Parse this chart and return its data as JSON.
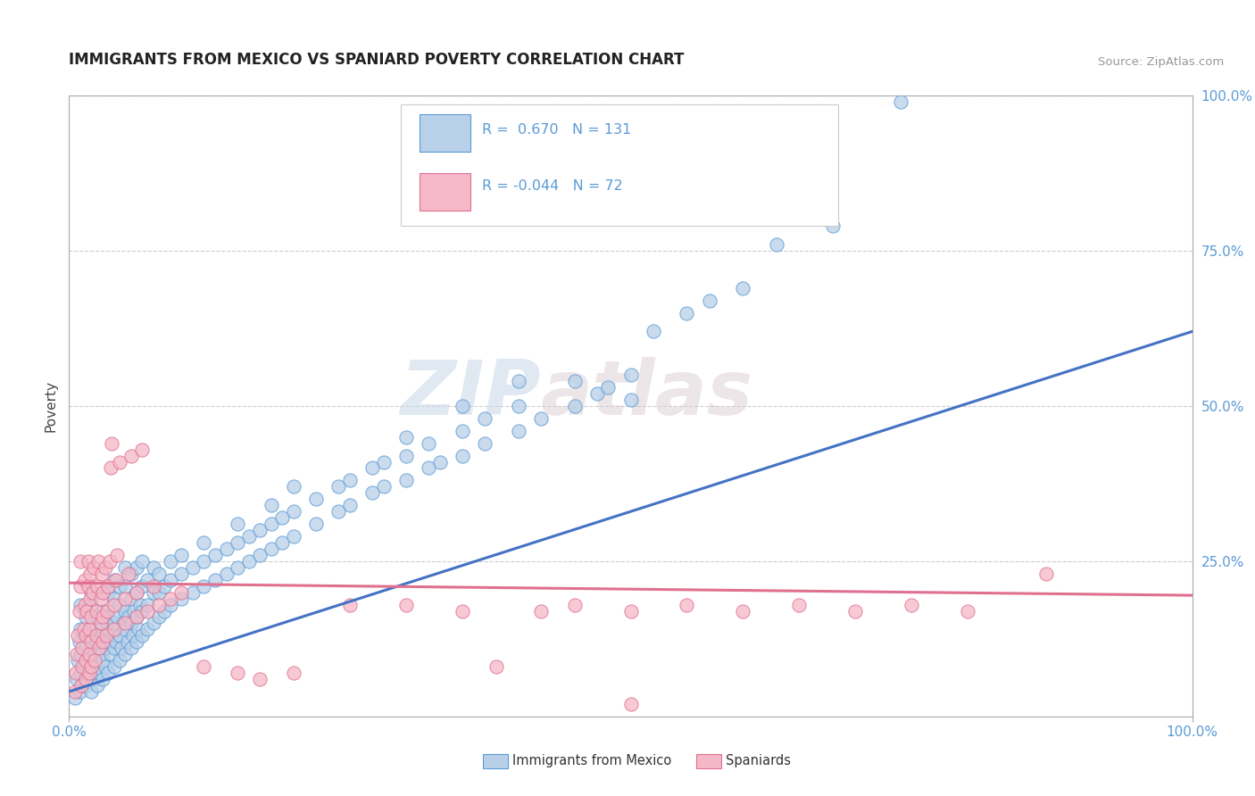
{
  "title": "IMMIGRANTS FROM MEXICO VS SPANIARD POVERTY CORRELATION CHART",
  "source": "Source: ZipAtlas.com",
  "ylabel": "Poverty",
  "xlim": [
    0.0,
    1.0
  ],
  "ylim": [
    0.0,
    1.0
  ],
  "xtick_labels": [
    "0.0%",
    "100.0%"
  ],
  "ytick_positions": [
    0.25,
    0.5,
    0.75,
    1.0
  ],
  "ytick_labels": [
    "25.0%",
    "50.0%",
    "75.0%",
    "100.0%"
  ],
  "legend_label1": "Immigrants from Mexico",
  "legend_label2": "Spaniards",
  "color_blue_fill": "#b8d0e8",
  "color_blue_edge": "#5b9bd5",
  "color_pink_fill": "#f4b8c8",
  "color_pink_edge": "#e07090",
  "color_blue_line": "#4472c4",
  "color_pink_line": "#e07090",
  "color_tick_label": "#5b9bd5",
  "title_color": "#222222",
  "axis_color": "#aaaaaa",
  "grid_color": "#cccccc",
  "background_color": "#ffffff",
  "watermark1": "ZIP",
  "watermark2": "atlas",
  "blue_line_x": [
    0.0,
    1.0
  ],
  "blue_line_y": [
    0.04,
    0.62
  ],
  "pink_line_x": [
    0.0,
    1.0
  ],
  "pink_line_y": [
    0.215,
    0.195
  ],
  "blue_scatter": [
    [
      0.005,
      0.03
    ],
    [
      0.007,
      0.06
    ],
    [
      0.008,
      0.09
    ],
    [
      0.009,
      0.12
    ],
    [
      0.01,
      0.04
    ],
    [
      0.01,
      0.07
    ],
    [
      0.01,
      0.1
    ],
    [
      0.01,
      0.14
    ],
    [
      0.01,
      0.18
    ],
    [
      0.012,
      0.05
    ],
    [
      0.013,
      0.08
    ],
    [
      0.015,
      0.05
    ],
    [
      0.015,
      0.11
    ],
    [
      0.015,
      0.16
    ],
    [
      0.017,
      0.06
    ],
    [
      0.018,
      0.09
    ],
    [
      0.018,
      0.13
    ],
    [
      0.02,
      0.04
    ],
    [
      0.02,
      0.07
    ],
    [
      0.02,
      0.1
    ],
    [
      0.02,
      0.14
    ],
    [
      0.02,
      0.18
    ],
    [
      0.02,
      0.2
    ],
    [
      0.022,
      0.06
    ],
    [
      0.023,
      0.09
    ],
    [
      0.024,
      0.12
    ],
    [
      0.025,
      0.05
    ],
    [
      0.025,
      0.08
    ],
    [
      0.025,
      0.12
    ],
    [
      0.025,
      0.16
    ],
    [
      0.027,
      0.07
    ],
    [
      0.028,
      0.1
    ],
    [
      0.028,
      0.14
    ],
    [
      0.03,
      0.06
    ],
    [
      0.03,
      0.09
    ],
    [
      0.03,
      0.13
    ],
    [
      0.03,
      0.17
    ],
    [
      0.03,
      0.2
    ],
    [
      0.032,
      0.08
    ],
    [
      0.033,
      0.11
    ],
    [
      0.034,
      0.15
    ],
    [
      0.035,
      0.07
    ],
    [
      0.035,
      0.12
    ],
    [
      0.035,
      0.16
    ],
    [
      0.035,
      0.2
    ],
    [
      0.037,
      0.1
    ],
    [
      0.038,
      0.13
    ],
    [
      0.04,
      0.08
    ],
    [
      0.04,
      0.11
    ],
    [
      0.04,
      0.15
    ],
    [
      0.04,
      0.19
    ],
    [
      0.04,
      0.22
    ],
    [
      0.042,
      0.12
    ],
    [
      0.043,
      0.16
    ],
    [
      0.045,
      0.09
    ],
    [
      0.045,
      0.13
    ],
    [
      0.045,
      0.18
    ],
    [
      0.045,
      0.21
    ],
    [
      0.047,
      0.11
    ],
    [
      0.048,
      0.15
    ],
    [
      0.05,
      0.1
    ],
    [
      0.05,
      0.14
    ],
    [
      0.05,
      0.17
    ],
    [
      0.05,
      0.21
    ],
    [
      0.05,
      0.24
    ],
    [
      0.052,
      0.12
    ],
    [
      0.053,
      0.16
    ],
    [
      0.055,
      0.11
    ],
    [
      0.055,
      0.15
    ],
    [
      0.055,
      0.19
    ],
    [
      0.055,
      0.23
    ],
    [
      0.057,
      0.13
    ],
    [
      0.058,
      0.17
    ],
    [
      0.06,
      0.12
    ],
    [
      0.06,
      0.16
    ],
    [
      0.06,
      0.2
    ],
    [
      0.06,
      0.24
    ],
    [
      0.062,
      0.14
    ],
    [
      0.063,
      0.18
    ],
    [
      0.065,
      0.13
    ],
    [
      0.065,
      0.17
    ],
    [
      0.065,
      0.21
    ],
    [
      0.065,
      0.25
    ],
    [
      0.07,
      0.14
    ],
    [
      0.07,
      0.18
    ],
    [
      0.07,
      0.22
    ],
    [
      0.075,
      0.15
    ],
    [
      0.075,
      0.2
    ],
    [
      0.075,
      0.24
    ],
    [
      0.08,
      0.16
    ],
    [
      0.08,
      0.2
    ],
    [
      0.08,
      0.23
    ],
    [
      0.085,
      0.17
    ],
    [
      0.085,
      0.21
    ],
    [
      0.09,
      0.18
    ],
    [
      0.09,
      0.22
    ],
    [
      0.09,
      0.25
    ],
    [
      0.1,
      0.19
    ],
    [
      0.1,
      0.23
    ],
    [
      0.1,
      0.26
    ],
    [
      0.11,
      0.2
    ],
    [
      0.11,
      0.24
    ],
    [
      0.12,
      0.21
    ],
    [
      0.12,
      0.25
    ],
    [
      0.12,
      0.28
    ],
    [
      0.13,
      0.22
    ],
    [
      0.13,
      0.26
    ],
    [
      0.14,
      0.23
    ],
    [
      0.14,
      0.27
    ],
    [
      0.15,
      0.24
    ],
    [
      0.15,
      0.28
    ],
    [
      0.15,
      0.31
    ],
    [
      0.16,
      0.25
    ],
    [
      0.16,
      0.29
    ],
    [
      0.17,
      0.26
    ],
    [
      0.17,
      0.3
    ],
    [
      0.18,
      0.27
    ],
    [
      0.18,
      0.31
    ],
    [
      0.18,
      0.34
    ],
    [
      0.19,
      0.28
    ],
    [
      0.19,
      0.32
    ],
    [
      0.2,
      0.29
    ],
    [
      0.2,
      0.33
    ],
    [
      0.2,
      0.37
    ],
    [
      0.22,
      0.31
    ],
    [
      0.22,
      0.35
    ],
    [
      0.24,
      0.33
    ],
    [
      0.24,
      0.37
    ],
    [
      0.25,
      0.34
    ],
    [
      0.25,
      0.38
    ],
    [
      0.27,
      0.36
    ],
    [
      0.27,
      0.4
    ],
    [
      0.28,
      0.37
    ],
    [
      0.28,
      0.41
    ],
    [
      0.3,
      0.38
    ],
    [
      0.3,
      0.42
    ],
    [
      0.3,
      0.45
    ],
    [
      0.32,
      0.4
    ],
    [
      0.32,
      0.44
    ],
    [
      0.33,
      0.41
    ],
    [
      0.35,
      0.42
    ],
    [
      0.35,
      0.46
    ],
    [
      0.35,
      0.5
    ],
    [
      0.37,
      0.44
    ],
    [
      0.37,
      0.48
    ],
    [
      0.4,
      0.46
    ],
    [
      0.4,
      0.5
    ],
    [
      0.4,
      0.54
    ],
    [
      0.42,
      0.48
    ],
    [
      0.45,
      0.5
    ],
    [
      0.45,
      0.54
    ],
    [
      0.47,
      0.52
    ],
    [
      0.48,
      0.53
    ],
    [
      0.5,
      0.51
    ],
    [
      0.5,
      0.55
    ],
    [
      0.52,
      0.62
    ],
    [
      0.55,
      0.65
    ],
    [
      0.57,
      0.67
    ],
    [
      0.6,
      0.69
    ],
    [
      0.63,
      0.76
    ],
    [
      0.68,
      0.79
    ],
    [
      0.74,
      0.99
    ]
  ],
  "pink_scatter": [
    [
      0.005,
      0.04
    ],
    [
      0.006,
      0.07
    ],
    [
      0.007,
      0.1
    ],
    [
      0.008,
      0.13
    ],
    [
      0.009,
      0.17
    ],
    [
      0.01,
      0.21
    ],
    [
      0.01,
      0.25
    ],
    [
      0.011,
      0.05
    ],
    [
      0.012,
      0.08
    ],
    [
      0.012,
      0.11
    ],
    [
      0.013,
      0.14
    ],
    [
      0.014,
      0.18
    ],
    [
      0.014,
      0.22
    ],
    [
      0.015,
      0.06
    ],
    [
      0.015,
      0.09
    ],
    [
      0.015,
      0.13
    ],
    [
      0.016,
      0.17
    ],
    [
      0.017,
      0.21
    ],
    [
      0.017,
      0.25
    ],
    [
      0.018,
      0.07
    ],
    [
      0.018,
      0.1
    ],
    [
      0.018,
      0.14
    ],
    [
      0.019,
      0.19
    ],
    [
      0.019,
      0.23
    ],
    [
      0.02,
      0.08
    ],
    [
      0.02,
      0.12
    ],
    [
      0.02,
      0.16
    ],
    [
      0.021,
      0.2
    ],
    [
      0.022,
      0.24
    ],
    [
      0.023,
      0.09
    ],
    [
      0.024,
      0.13
    ],
    [
      0.024,
      0.17
    ],
    [
      0.025,
      0.21
    ],
    [
      0.026,
      0.25
    ],
    [
      0.027,
      0.11
    ],
    [
      0.028,
      0.15
    ],
    [
      0.028,
      0.19
    ],
    [
      0.029,
      0.23
    ],
    [
      0.03,
      0.12
    ],
    [
      0.03,
      0.16
    ],
    [
      0.03,
      0.2
    ],
    [
      0.032,
      0.24
    ],
    [
      0.033,
      0.13
    ],
    [
      0.034,
      0.17
    ],
    [
      0.035,
      0.21
    ],
    [
      0.036,
      0.25
    ],
    [
      0.037,
      0.4
    ],
    [
      0.038,
      0.44
    ],
    [
      0.04,
      0.14
    ],
    [
      0.04,
      0.18
    ],
    [
      0.042,
      0.22
    ],
    [
      0.043,
      0.26
    ],
    [
      0.045,
      0.41
    ],
    [
      0.05,
      0.15
    ],
    [
      0.05,
      0.19
    ],
    [
      0.053,
      0.23
    ],
    [
      0.055,
      0.42
    ],
    [
      0.06,
      0.16
    ],
    [
      0.06,
      0.2
    ],
    [
      0.065,
      0.43
    ],
    [
      0.07,
      0.17
    ],
    [
      0.075,
      0.21
    ],
    [
      0.08,
      0.18
    ],
    [
      0.09,
      0.19
    ],
    [
      0.1,
      0.2
    ],
    [
      0.12,
      0.08
    ],
    [
      0.15,
      0.07
    ],
    [
      0.17,
      0.06
    ],
    [
      0.2,
      0.07
    ],
    [
      0.25,
      0.18
    ],
    [
      0.3,
      0.18
    ],
    [
      0.35,
      0.17
    ],
    [
      0.38,
      0.08
    ],
    [
      0.42,
      0.17
    ],
    [
      0.45,
      0.18
    ],
    [
      0.5,
      0.02
    ],
    [
      0.5,
      0.17
    ],
    [
      0.55,
      0.18
    ],
    [
      0.6,
      0.17
    ],
    [
      0.65,
      0.18
    ],
    [
      0.7,
      0.17
    ],
    [
      0.75,
      0.18
    ],
    [
      0.8,
      0.17
    ],
    [
      0.87,
      0.23
    ]
  ]
}
